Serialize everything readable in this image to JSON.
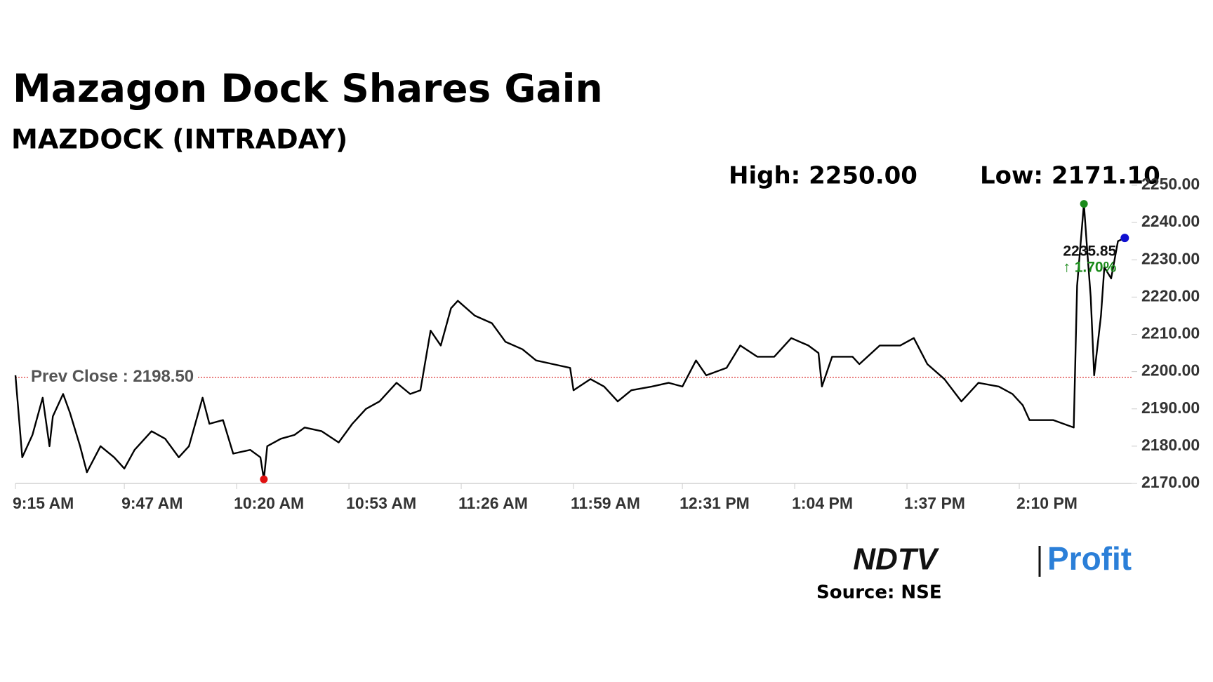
{
  "chart_data": {
    "type": "line",
    "title": "Mazagon Dock Shares Gain",
    "subtitle": "MAZDOCK (INTRADAY)",
    "high_label": "High: 2250.00",
    "low_label": "Low: 2171.10",
    "x": [
      "9:15 AM",
      "9:17 AM",
      "9:20 AM",
      "9:23 AM",
      "9:25 AM",
      "9:26 AM",
      "9:29 AM",
      "9:31 AM",
      "9:34 AM",
      "9:36 AM",
      "9:40 AM",
      "9:44 AM",
      "9:47 AM",
      "9:50 AM",
      "9:55 AM",
      "9:59 AM",
      "10:03 AM",
      "10:06 AM",
      "10:10 AM",
      "10:12 AM",
      "10:16 AM",
      "10:19 AM",
      "10:24 AM",
      "10:27 AM",
      "10:28 AM",
      "10:29 AM",
      "10:33 AM",
      "10:37 AM",
      "10:40 AM",
      "10:45 AM",
      "10:50 AM",
      "10:54 AM",
      "10:58 AM",
      "11:02 AM",
      "11:07 AM",
      "11:11 AM",
      "11:14 AM",
      "11:17 AM",
      "11:20 AM",
      "11:23 AM",
      "11:25 AM",
      "11:30 AM",
      "11:35 AM",
      "11:39 AM",
      "11:44 AM",
      "11:48 AM",
      "11:53 AM",
      "11:58 AM",
      "11:59 AM",
      "12:04 PM",
      "12:08 PM",
      "12:12 PM",
      "12:16 PM",
      "12:22 PM",
      "12:27 PM",
      "12:31 PM",
      "12:35 PM",
      "12:38 PM",
      "12:44 PM",
      "12:48 PM",
      "12:53 PM",
      "12:58 PM",
      "1:03 PM",
      "1:08 PM",
      "1:11 PM",
      "1:12 PM",
      "1:15 PM",
      "1:21 PM",
      "1:23 PM",
      "1:29 PM",
      "1:35 PM",
      "1:39 PM",
      "1:43 PM",
      "1:48 PM",
      "1:53 PM",
      "1:58 PM",
      "2:04 PM",
      "2:08 PM",
      "2:11 PM",
      "2:13 PM",
      "2:20 PM",
      "2:26 PM",
      "2:27 PM",
      "2:29 PM",
      "2:30 PM",
      "2:31 PM",
      "2:32 PM",
      "2:34 PM",
      "2:35 PM",
      "2:37 PM",
      "2:39 PM",
      "2:41 PM"
    ],
    "values": [
      2199,
      2177,
      2183,
      2193,
      2180,
      2188,
      2194,
      2189,
      2180,
      2173,
      2180,
      2177,
      2174,
      2179,
      2184,
      2182,
      2177,
      2180,
      2193,
      2186,
      2187,
      2178,
      2179,
      2177,
      2171.1,
      2180,
      2182,
      2183,
      2185,
      2184,
      2181,
      2186,
      2190,
      2192,
      2197,
      2194,
      2195,
      2211,
      2207,
      2217,
      2219,
      2215,
      2213,
      2208,
      2206,
      2203,
      2202,
      2201,
      2195,
      2198,
      2196,
      2192,
      2195,
      2196,
      2197,
      2196,
      2203,
      2199,
      2201,
      2207,
      2204,
      2204,
      2209,
      2207,
      2205,
      2196,
      2204,
      2204,
      2202,
      2207,
      2207,
      2209,
      2202,
      2198,
      2192,
      2197,
      2196,
      2194,
      2191,
      2187,
      2187,
      2185,
      2223,
      2245,
      2232,
      2220,
      2199,
      2215,
      2228,
      2225,
      2235,
      2235.85
    ],
    "color": "#000000",
    "xlim": [
      "9:15 AM",
      "2:43 PM"
    ],
    "xticks": [
      "9:15 AM",
      "9:47 AM",
      "10:20 AM",
      "10:53 AM",
      "11:26 AM",
      "11:59 AM",
      "12:31 PM",
      "1:04 PM",
      "1:37 PM",
      "2:10 PM"
    ],
    "ylim": [
      2170,
      2250
    ],
    "yticks": [
      {
        "value": 2170,
        "label": "2170.00"
      },
      {
        "value": 2180,
        "label": "2180.00"
      },
      {
        "value": 2190,
        "label": "2190.00"
      },
      {
        "value": 2200,
        "label": "2200.00"
      },
      {
        "value": 2210,
        "label": "2210.00"
      },
      {
        "value": 2220,
        "label": "2220.00"
      },
      {
        "value": 2230,
        "label": "2230.00"
      },
      {
        "value": 2240,
        "label": "2240.00"
      },
      {
        "value": 2250,
        "label": "2250.00"
      }
    ],
    "prev_close": {
      "value": 2198.5,
      "label": "Prev Close : 2198.50"
    },
    "last_value_label": "2235.85",
    "change_label": "↑ 1.70%",
    "brand": [
      "NDTV",
      "Profit"
    ],
    "source": "Source: NSE"
  }
}
